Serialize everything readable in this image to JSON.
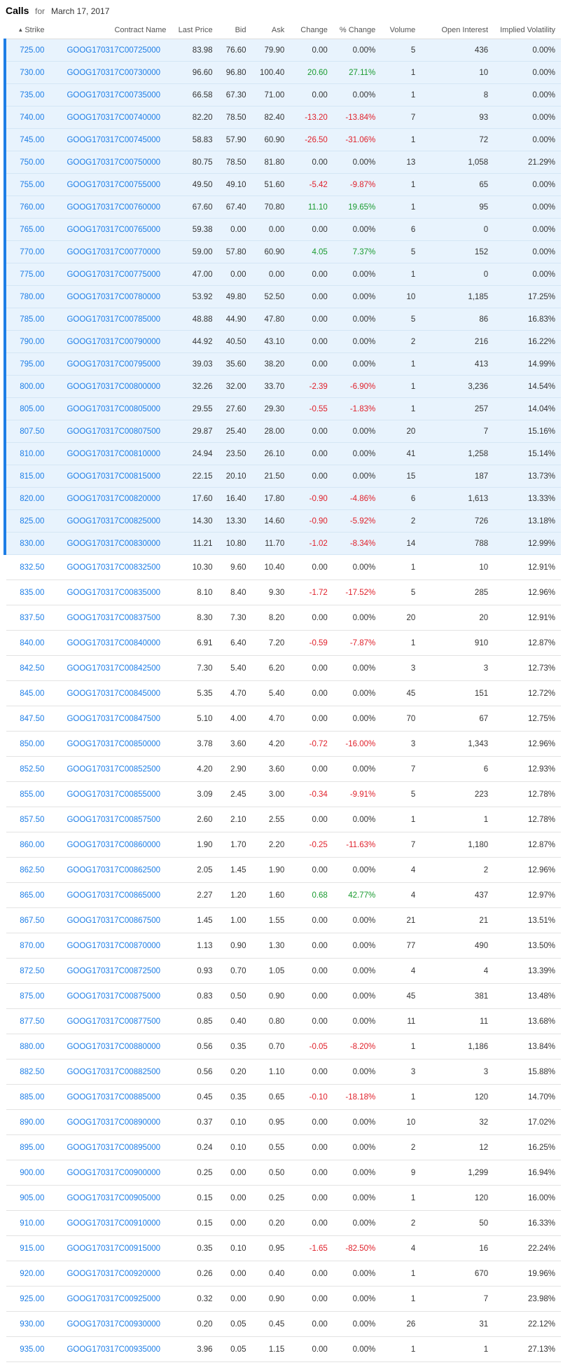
{
  "header": {
    "title": "Calls",
    "for_label": "for",
    "date": "March 17, 2017"
  },
  "columns": [
    "Strike",
    "Contract Name",
    "Last Price",
    "Bid",
    "Ask",
    "Change",
    "% Change",
    "Volume",
    "Open Interest",
    "Implied Volatility"
  ],
  "sort_icon": "caret-up-icon",
  "colors": {
    "in_the_money_bg": "#e8f3fd",
    "accent": "#1e7ee6",
    "positive": "#1a9b30",
    "negative": "#e0212b"
  },
  "rows": [
    {
      "strike": "725.00",
      "contract": "GOOG170317C00725000",
      "last": "83.98",
      "bid": "76.60",
      "ask": "79.90",
      "change": "0.00",
      "pct": "0.00%",
      "volume": "5",
      "oi": "436",
      "iv": "0.00%",
      "itm": true
    },
    {
      "strike": "730.00",
      "contract": "GOOG170317C00730000",
      "last": "96.60",
      "bid": "96.80",
      "ask": "100.40",
      "change": "20.60",
      "pct": "27.11%",
      "volume": "1",
      "oi": "10",
      "iv": "0.00%",
      "itm": true
    },
    {
      "strike": "735.00",
      "contract": "GOOG170317C00735000",
      "last": "66.58",
      "bid": "67.30",
      "ask": "71.00",
      "change": "0.00",
      "pct": "0.00%",
      "volume": "1",
      "oi": "8",
      "iv": "0.00%",
      "itm": true
    },
    {
      "strike": "740.00",
      "contract": "GOOG170317C00740000",
      "last": "82.20",
      "bid": "78.50",
      "ask": "82.40",
      "change": "-13.20",
      "pct": "-13.84%",
      "volume": "7",
      "oi": "93",
      "iv": "0.00%",
      "itm": true
    },
    {
      "strike": "745.00",
      "contract": "GOOG170317C00745000",
      "last": "58.83",
      "bid": "57.90",
      "ask": "60.90",
      "change": "-26.50",
      "pct": "-31.06%",
      "volume": "1",
      "oi": "72",
      "iv": "0.00%",
      "itm": true
    },
    {
      "strike": "750.00",
      "contract": "GOOG170317C00750000",
      "last": "80.75",
      "bid": "78.50",
      "ask": "81.80",
      "change": "0.00",
      "pct": "0.00%",
      "volume": "13",
      "oi": "1,058",
      "iv": "21.29%",
      "itm": true
    },
    {
      "strike": "755.00",
      "contract": "GOOG170317C00755000",
      "last": "49.50",
      "bid": "49.10",
      "ask": "51.60",
      "change": "-5.42",
      "pct": "-9.87%",
      "volume": "1",
      "oi": "65",
      "iv": "0.00%",
      "itm": true
    },
    {
      "strike": "760.00",
      "contract": "GOOG170317C00760000",
      "last": "67.60",
      "bid": "67.40",
      "ask": "70.80",
      "change": "11.10",
      "pct": "19.65%",
      "volume": "1",
      "oi": "95",
      "iv": "0.00%",
      "itm": true
    },
    {
      "strike": "765.00",
      "contract": "GOOG170317C00765000",
      "last": "59.38",
      "bid": "0.00",
      "ask": "0.00",
      "change": "0.00",
      "pct": "0.00%",
      "volume": "6",
      "oi": "0",
      "iv": "0.00%",
      "itm": true
    },
    {
      "strike": "770.00",
      "contract": "GOOG170317C00770000",
      "last": "59.00",
      "bid": "57.80",
      "ask": "60.90",
      "change": "4.05",
      "pct": "7.37%",
      "volume": "5",
      "oi": "152",
      "iv": "0.00%",
      "itm": true
    },
    {
      "strike": "775.00",
      "contract": "GOOG170317C00775000",
      "last": "47.00",
      "bid": "0.00",
      "ask": "0.00",
      "change": "0.00",
      "pct": "0.00%",
      "volume": "1",
      "oi": "0",
      "iv": "0.00%",
      "itm": true
    },
    {
      "strike": "780.00",
      "contract": "GOOG170317C00780000",
      "last": "53.92",
      "bid": "49.80",
      "ask": "52.50",
      "change": "0.00",
      "pct": "0.00%",
      "volume": "10",
      "oi": "1,185",
      "iv": "17.25%",
      "itm": true
    },
    {
      "strike": "785.00",
      "contract": "GOOG170317C00785000",
      "last": "48.88",
      "bid": "44.90",
      "ask": "47.80",
      "change": "0.00",
      "pct": "0.00%",
      "volume": "5",
      "oi": "86",
      "iv": "16.83%",
      "itm": true
    },
    {
      "strike": "790.00",
      "contract": "GOOG170317C00790000",
      "last": "44.92",
      "bid": "40.50",
      "ask": "43.10",
      "change": "0.00",
      "pct": "0.00%",
      "volume": "2",
      "oi": "216",
      "iv": "16.22%",
      "itm": true
    },
    {
      "strike": "795.00",
      "contract": "GOOG170317C00795000",
      "last": "39.03",
      "bid": "35.60",
      "ask": "38.20",
      "change": "0.00",
      "pct": "0.00%",
      "volume": "1",
      "oi": "413",
      "iv": "14.99%",
      "itm": true
    },
    {
      "strike": "800.00",
      "contract": "GOOG170317C00800000",
      "last": "32.26",
      "bid": "32.00",
      "ask": "33.70",
      "change": "-2.39",
      "pct": "-6.90%",
      "volume": "1",
      "oi": "3,236",
      "iv": "14.54%",
      "itm": true
    },
    {
      "strike": "805.00",
      "contract": "GOOG170317C00805000",
      "last": "29.55",
      "bid": "27.60",
      "ask": "29.30",
      "change": "-0.55",
      "pct": "-1.83%",
      "volume": "1",
      "oi": "257",
      "iv": "14.04%",
      "itm": true
    },
    {
      "strike": "807.50",
      "contract": "GOOG170317C00807500",
      "last": "29.87",
      "bid": "25.40",
      "ask": "28.00",
      "change": "0.00",
      "pct": "0.00%",
      "volume": "20",
      "oi": "7",
      "iv": "15.16%",
      "itm": true
    },
    {
      "strike": "810.00",
      "contract": "GOOG170317C00810000",
      "last": "24.94",
      "bid": "23.50",
      "ask": "26.10",
      "change": "0.00",
      "pct": "0.00%",
      "volume": "41",
      "oi": "1,258",
      "iv": "15.14%",
      "itm": true
    },
    {
      "strike": "815.00",
      "contract": "GOOG170317C00815000",
      "last": "22.15",
      "bid": "20.10",
      "ask": "21.50",
      "change": "0.00",
      "pct": "0.00%",
      "volume": "15",
      "oi": "187",
      "iv": "13.73%",
      "itm": true
    },
    {
      "strike": "820.00",
      "contract": "GOOG170317C00820000",
      "last": "17.60",
      "bid": "16.40",
      "ask": "17.80",
      "change": "-0.90",
      "pct": "-4.86%",
      "volume": "6",
      "oi": "1,613",
      "iv": "13.33%",
      "itm": true
    },
    {
      "strike": "825.00",
      "contract": "GOOG170317C00825000",
      "last": "14.30",
      "bid": "13.30",
      "ask": "14.60",
      "change": "-0.90",
      "pct": "-5.92%",
      "volume": "2",
      "oi": "726",
      "iv": "13.18%",
      "itm": true
    },
    {
      "strike": "830.00",
      "contract": "GOOG170317C00830000",
      "last": "11.21",
      "bid": "10.80",
      "ask": "11.70",
      "change": "-1.02",
      "pct": "-8.34%",
      "volume": "14",
      "oi": "788",
      "iv": "12.99%",
      "itm": true
    },
    {
      "strike": "832.50",
      "contract": "GOOG170317C00832500",
      "last": "10.30",
      "bid": "9.60",
      "ask": "10.40",
      "change": "0.00",
      "pct": "0.00%",
      "volume": "1",
      "oi": "10",
      "iv": "12.91%",
      "itm": false
    },
    {
      "strike": "835.00",
      "contract": "GOOG170317C00835000",
      "last": "8.10",
      "bid": "8.40",
      "ask": "9.30",
      "change": "-1.72",
      "pct": "-17.52%",
      "volume": "5",
      "oi": "285",
      "iv": "12.96%",
      "itm": false
    },
    {
      "strike": "837.50",
      "contract": "GOOG170317C00837500",
      "last": "8.30",
      "bid": "7.30",
      "ask": "8.20",
      "change": "0.00",
      "pct": "0.00%",
      "volume": "20",
      "oi": "20",
      "iv": "12.91%",
      "itm": false
    },
    {
      "strike": "840.00",
      "contract": "GOOG170317C00840000",
      "last": "6.91",
      "bid": "6.40",
      "ask": "7.20",
      "change": "-0.59",
      "pct": "-7.87%",
      "volume": "1",
      "oi": "910",
      "iv": "12.87%",
      "itm": false
    },
    {
      "strike": "842.50",
      "contract": "GOOG170317C00842500",
      "last": "7.30",
      "bid": "5.40",
      "ask": "6.20",
      "change": "0.00",
      "pct": "0.00%",
      "volume": "3",
      "oi": "3",
      "iv": "12.73%",
      "itm": false
    },
    {
      "strike": "845.00",
      "contract": "GOOG170317C00845000",
      "last": "5.35",
      "bid": "4.70",
      "ask": "5.40",
      "change": "0.00",
      "pct": "0.00%",
      "volume": "45",
      "oi": "151",
      "iv": "12.72%",
      "itm": false
    },
    {
      "strike": "847.50",
      "contract": "GOOG170317C00847500",
      "last": "5.10",
      "bid": "4.00",
      "ask": "4.70",
      "change": "0.00",
      "pct": "0.00%",
      "volume": "70",
      "oi": "67",
      "iv": "12.75%",
      "itm": false
    },
    {
      "strike": "850.00",
      "contract": "GOOG170317C00850000",
      "last": "3.78",
      "bid": "3.60",
      "ask": "4.20",
      "change": "-0.72",
      "pct": "-16.00%",
      "volume": "3",
      "oi": "1,343",
      "iv": "12.96%",
      "itm": false
    },
    {
      "strike": "852.50",
      "contract": "GOOG170317C00852500",
      "last": "4.20",
      "bid": "2.90",
      "ask": "3.60",
      "change": "0.00",
      "pct": "0.00%",
      "volume": "7",
      "oi": "6",
      "iv": "12.93%",
      "itm": false
    },
    {
      "strike": "855.00",
      "contract": "GOOG170317C00855000",
      "last": "3.09",
      "bid": "2.45",
      "ask": "3.00",
      "change": "-0.34",
      "pct": "-9.91%",
      "volume": "5",
      "oi": "223",
      "iv": "12.78%",
      "itm": false
    },
    {
      "strike": "857.50",
      "contract": "GOOG170317C00857500",
      "last": "2.60",
      "bid": "2.10",
      "ask": "2.55",
      "change": "0.00",
      "pct": "0.00%",
      "volume": "1",
      "oi": "1",
      "iv": "12.78%",
      "itm": false
    },
    {
      "strike": "860.00",
      "contract": "GOOG170317C00860000",
      "last": "1.90",
      "bid": "1.70",
      "ask": "2.20",
      "change": "-0.25",
      "pct": "-11.63%",
      "volume": "7",
      "oi": "1,180",
      "iv": "12.87%",
      "itm": false
    },
    {
      "strike": "862.50",
      "contract": "GOOG170317C00862500",
      "last": "2.05",
      "bid": "1.45",
      "ask": "1.90",
      "change": "0.00",
      "pct": "0.00%",
      "volume": "4",
      "oi": "2",
      "iv": "12.96%",
      "itm": false
    },
    {
      "strike": "865.00",
      "contract": "GOOG170317C00865000",
      "last": "2.27",
      "bid": "1.20",
      "ask": "1.60",
      "change": "0.68",
      "pct": "42.77%",
      "volume": "4",
      "oi": "437",
      "iv": "12.97%",
      "itm": false
    },
    {
      "strike": "867.50",
      "contract": "GOOG170317C00867500",
      "last": "1.45",
      "bid": "1.00",
      "ask": "1.55",
      "change": "0.00",
      "pct": "0.00%",
      "volume": "21",
      "oi": "21",
      "iv": "13.51%",
      "itm": false
    },
    {
      "strike": "870.00",
      "contract": "GOOG170317C00870000",
      "last": "1.13",
      "bid": "0.90",
      "ask": "1.30",
      "change": "0.00",
      "pct": "0.00%",
      "volume": "77",
      "oi": "490",
      "iv": "13.50%",
      "itm": false
    },
    {
      "strike": "872.50",
      "contract": "GOOG170317C00872500",
      "last": "0.93",
      "bid": "0.70",
      "ask": "1.05",
      "change": "0.00",
      "pct": "0.00%",
      "volume": "4",
      "oi": "4",
      "iv": "13.39%",
      "itm": false
    },
    {
      "strike": "875.00",
      "contract": "GOOG170317C00875000",
      "last": "0.83",
      "bid": "0.50",
      "ask": "0.90",
      "change": "0.00",
      "pct": "0.00%",
      "volume": "45",
      "oi": "381",
      "iv": "13.48%",
      "itm": false
    },
    {
      "strike": "877.50",
      "contract": "GOOG170317C00877500",
      "last": "0.85",
      "bid": "0.40",
      "ask": "0.80",
      "change": "0.00",
      "pct": "0.00%",
      "volume": "11",
      "oi": "11",
      "iv": "13.68%",
      "itm": false
    },
    {
      "strike": "880.00",
      "contract": "GOOG170317C00880000",
      "last": "0.56",
      "bid": "0.35",
      "ask": "0.70",
      "change": "-0.05",
      "pct": "-8.20%",
      "volume": "1",
      "oi": "1,186",
      "iv": "13.84%",
      "itm": false
    },
    {
      "strike": "882.50",
      "contract": "GOOG170317C00882500",
      "last": "0.56",
      "bid": "0.20",
      "ask": "1.10",
      "change": "0.00",
      "pct": "0.00%",
      "volume": "3",
      "oi": "3",
      "iv": "15.88%",
      "itm": false
    },
    {
      "strike": "885.00",
      "contract": "GOOG170317C00885000",
      "last": "0.45",
      "bid": "0.35",
      "ask": "0.65",
      "change": "-0.10",
      "pct": "-18.18%",
      "volume": "1",
      "oi": "120",
      "iv": "14.70%",
      "itm": false
    },
    {
      "strike": "890.00",
      "contract": "GOOG170317C00890000",
      "last": "0.37",
      "bid": "0.10",
      "ask": "0.95",
      "change": "0.00",
      "pct": "0.00%",
      "volume": "10",
      "oi": "32",
      "iv": "17.02%",
      "itm": false
    },
    {
      "strike": "895.00",
      "contract": "GOOG170317C00895000",
      "last": "0.24",
      "bid": "0.10",
      "ask": "0.55",
      "change": "0.00",
      "pct": "0.00%",
      "volume": "2",
      "oi": "12",
      "iv": "16.25%",
      "itm": false
    },
    {
      "strike": "900.00",
      "contract": "GOOG170317C00900000",
      "last": "0.25",
      "bid": "0.00",
      "ask": "0.50",
      "change": "0.00",
      "pct": "0.00%",
      "volume": "9",
      "oi": "1,299",
      "iv": "16.94%",
      "itm": false
    },
    {
      "strike": "905.00",
      "contract": "GOOG170317C00905000",
      "last": "0.15",
      "bid": "0.00",
      "ask": "0.25",
      "change": "0.00",
      "pct": "0.00%",
      "volume": "1",
      "oi": "120",
      "iv": "16.00%",
      "itm": false
    },
    {
      "strike": "910.00",
      "contract": "GOOG170317C00910000",
      "last": "0.15",
      "bid": "0.00",
      "ask": "0.20",
      "change": "0.00",
      "pct": "0.00%",
      "volume": "2",
      "oi": "50",
      "iv": "16.33%",
      "itm": false
    },
    {
      "strike": "915.00",
      "contract": "GOOG170317C00915000",
      "last": "0.35",
      "bid": "0.10",
      "ask": "0.95",
      "change": "-1.65",
      "pct": "-82.50%",
      "volume": "4",
      "oi": "16",
      "iv": "22.24%",
      "itm": false
    },
    {
      "strike": "920.00",
      "contract": "GOOG170317C00920000",
      "last": "0.26",
      "bid": "0.00",
      "ask": "0.40",
      "change": "0.00",
      "pct": "0.00%",
      "volume": "1",
      "oi": "670",
      "iv": "19.96%",
      "itm": false
    },
    {
      "strike": "925.00",
      "contract": "GOOG170317C00925000",
      "last": "0.32",
      "bid": "0.00",
      "ask": "0.90",
      "change": "0.00",
      "pct": "0.00%",
      "volume": "1",
      "oi": "7",
      "iv": "23.98%",
      "itm": false
    },
    {
      "strike": "930.00",
      "contract": "GOOG170317C00930000",
      "last": "0.20",
      "bid": "0.05",
      "ask": "0.45",
      "change": "0.00",
      "pct": "0.00%",
      "volume": "26",
      "oi": "31",
      "iv": "22.12%",
      "itm": false
    },
    {
      "strike": "935.00",
      "contract": "GOOG170317C00935000",
      "last": "3.96",
      "bid": "0.05",
      "ask": "1.15",
      "change": "0.00",
      "pct": "0.00%",
      "volume": "1",
      "oi": "1",
      "iv": "27.13%",
      "itm": false
    }
  ]
}
